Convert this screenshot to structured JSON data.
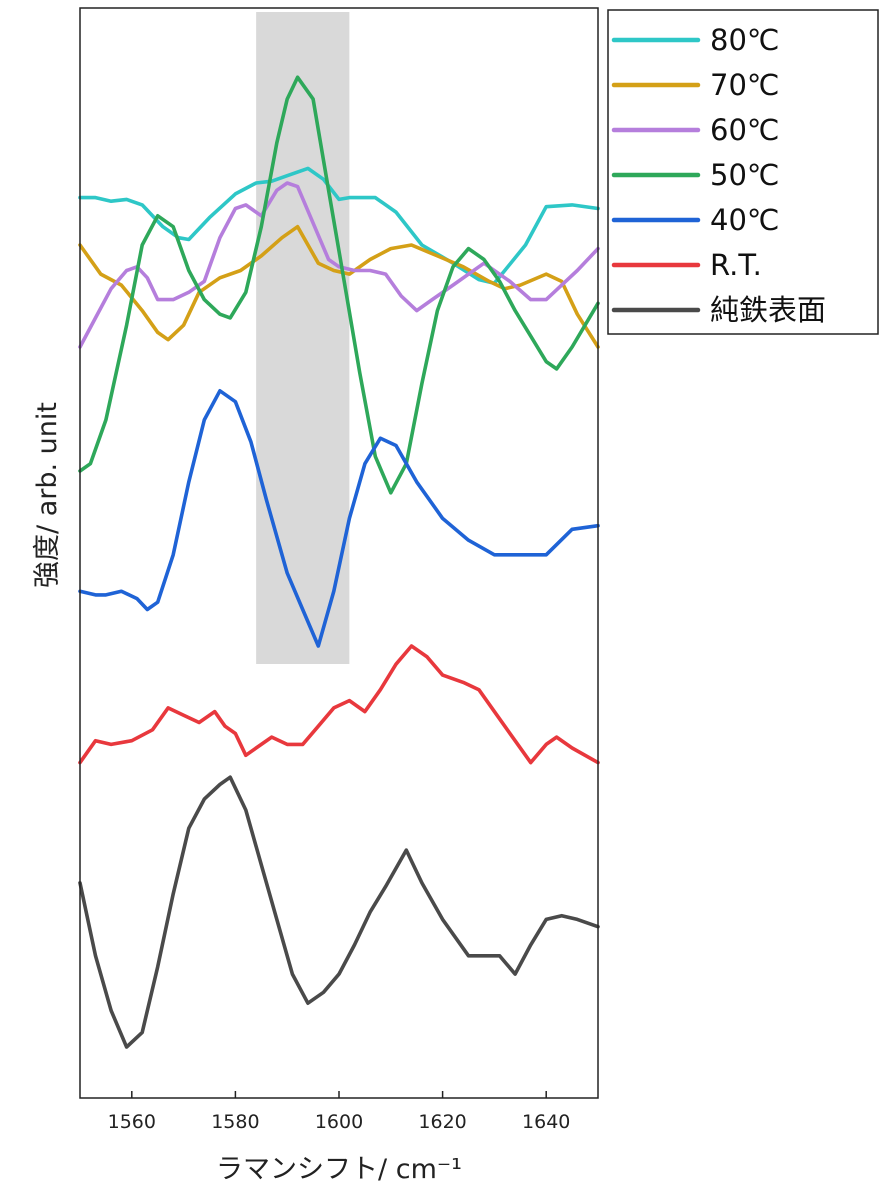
{
  "chart_data": {
    "type": "line",
    "xlabel": "ラマンシフト/ cm⁻¹",
    "ylabel": "強度/ arb. unit",
    "xlim": [
      1550,
      1650
    ],
    "xticks": [
      1560,
      1580,
      1600,
      1620,
      1640
    ],
    "y_axis_tick_labels": false,
    "highlight_band": {
      "x_from": 1584,
      "x_to": 1602,
      "color": "#d9d9d9"
    },
    "legend": {
      "position": "outside-top-right"
    },
    "series": [
      {
        "name": "80℃",
        "color": "#2ec7c7",
        "x": [
          1550,
          1553,
          1556,
          1559,
          1562,
          1566,
          1569,
          1571,
          1575,
          1580,
          1584,
          1587,
          1590,
          1594,
          1597,
          1600,
          1602,
          1607,
          1611,
          1616,
          1622,
          1627,
          1630,
          1632,
          1636,
          1640,
          1645,
          1650
        ],
        "y": [
          2.3,
          2.3,
          2.2,
          2.25,
          2.1,
          1.5,
          1.2,
          1.15,
          1.75,
          2.4,
          2.7,
          2.75,
          2.9,
          3.1,
          2.8,
          2.25,
          2.3,
          2.3,
          1.9,
          1.0,
          0.5,
          0.05,
          -0.05,
          0.3,
          1.0,
          2.05,
          2.1,
          2.0
        ]
      },
      {
        "name": "70℃",
        "color": "#d4a017",
        "x": [
          1550,
          1554,
          1558,
          1562,
          1565,
          1567,
          1570,
          1573,
          1577,
          1581,
          1585,
          1589,
          1592,
          1596,
          1599,
          1602,
          1606,
          1610,
          1614,
          1619,
          1624,
          1629,
          1632,
          1635,
          1640,
          1643,
          1646,
          1650
        ],
        "y": [
          1.0,
          0.2,
          -0.1,
          -0.8,
          -1.4,
          -1.6,
          -1.2,
          -0.3,
          0.1,
          0.3,
          0.7,
          1.2,
          1.5,
          0.5,
          0.3,
          0.2,
          0.6,
          0.9,
          1.0,
          0.7,
          0.4,
          0.0,
          -0.2,
          -0.1,
          0.2,
          0.0,
          -0.9,
          -1.8
        ]
      },
      {
        "name": "60℃",
        "color": "#b57edc",
        "x": [
          1550,
          1553,
          1556,
          1559,
          1561,
          1563,
          1565,
          1568,
          1571,
          1574,
          1577,
          1580,
          1582,
          1585,
          1588,
          1590,
          1592,
          1595,
          1598,
          1600,
          1603,
          1606,
          1609,
          1612,
          1615,
          1618,
          1622,
          1628,
          1633,
          1637,
          1640,
          1643,
          1646,
          1650
        ],
        "y": [
          -1.8,
          -1.0,
          -0.2,
          0.3,
          0.4,
          0.1,
          -0.5,
          -0.5,
          -0.3,
          0.0,
          1.2,
          2.0,
          2.1,
          1.8,
          2.5,
          2.7,
          2.6,
          1.6,
          0.6,
          0.4,
          0.3,
          0.3,
          0.2,
          -0.4,
          -0.8,
          -0.5,
          -0.1,
          0.5,
          0.0,
          -0.5,
          -0.5,
          -0.1,
          0.3,
          0.9
        ]
      },
      {
        "name": "50℃",
        "color": "#2ea85a",
        "x": [
          1550,
          1552,
          1555,
          1559,
          1562,
          1565,
          1568,
          1571,
          1574,
          1577,
          1579,
          1582,
          1585,
          1588,
          1590,
          1592,
          1595,
          1598,
          1601,
          1604,
          1607,
          1610,
          1613,
          1616,
          1619,
          1622,
          1625,
          1628,
          1631,
          1634,
          1637,
          1640,
          1642,
          1645,
          1650
        ],
        "y": [
          -5.2,
          -5.0,
          -3.8,
          -1.2,
          1.0,
          1.8,
          1.5,
          0.3,
          -0.5,
          -0.9,
          -1.0,
          -0.3,
          1.5,
          3.8,
          5.0,
          5.6,
          5.0,
          2.5,
          0.0,
          -2.5,
          -4.8,
          -5.8,
          -5.0,
          -2.8,
          -0.8,
          0.4,
          0.9,
          0.6,
          0.0,
          -0.8,
          -1.5,
          -2.2,
          -2.4,
          -1.8,
          -0.6
        ]
      },
      {
        "name": "40℃",
        "color": "#1f63d6",
        "x": [
          1550,
          1553,
          1555,
          1558,
          1561,
          1563,
          1565,
          1568,
          1571,
          1574,
          1577,
          1580,
          1583,
          1586,
          1590,
          1593,
          1596,
          1599,
          1602,
          1605,
          1608,
          1611,
          1615,
          1620,
          1625,
          1630,
          1635,
          1640,
          1645,
          1650
        ],
        "y": [
          -8.5,
          -8.6,
          -8.6,
          -8.5,
          -8.7,
          -9.0,
          -8.8,
          -7.5,
          -5.5,
          -3.8,
          -3.0,
          -3.3,
          -4.4,
          -6.0,
          -8.0,
          -9.0,
          -10.0,
          -8.5,
          -6.5,
          -5.0,
          -4.3,
          -4.5,
          -5.5,
          -6.5,
          -7.1,
          -7.5,
          -7.5,
          -7.5,
          -6.8,
          -6.7
        ]
      },
      {
        "name": "R.T.",
        "color": "#e8383d",
        "x": [
          1550,
          1553,
          1556,
          1560,
          1564,
          1567,
          1570,
          1573,
          1576,
          1578,
          1580,
          1582,
          1584,
          1587,
          1590,
          1593,
          1596,
          1599,
          1602,
          1605,
          1608,
          1611,
          1614,
          1617,
          1620,
          1624,
          1627,
          1630,
          1634,
          1637,
          1640,
          1642,
          1645,
          1650
        ],
        "y": [
          -13.2,
          -12.6,
          -12.7,
          -12.6,
          -12.3,
          -11.7,
          -11.9,
          -12.1,
          -11.8,
          -12.2,
          -12.4,
          -13.0,
          -12.8,
          -12.5,
          -12.7,
          -12.7,
          -12.2,
          -11.7,
          -11.5,
          -11.8,
          -11.2,
          -10.5,
          -10.0,
          -10.3,
          -10.8,
          -11.0,
          -11.2,
          -11.8,
          -12.6,
          -13.2,
          -12.7,
          -12.5,
          -12.8,
          -13.2
        ]
      },
      {
        "name": "純鉄表面",
        "color": "#4a4a4a",
        "x": [
          1550,
          1553,
          1556,
          1559,
          1562,
          1565,
          1568,
          1571,
          1574,
          1577,
          1579,
          1582,
          1585,
          1588,
          1591,
          1594,
          1597,
          1600,
          1603,
          1606,
          1609,
          1613,
          1616,
          1620,
          1625,
          1628,
          1631,
          1634,
          1637,
          1640,
          1643,
          1646,
          1650
        ],
        "y": [
          -16.5,
          -18.5,
          -20.0,
          -21.0,
          -20.6,
          -18.8,
          -16.8,
          -15.0,
          -14.2,
          -13.8,
          -13.6,
          -14.5,
          -16.0,
          -17.5,
          -19.0,
          -19.8,
          -19.5,
          -19.0,
          -18.2,
          -17.3,
          -16.6,
          -15.6,
          -16.5,
          -17.5,
          -18.5,
          -18.5,
          -18.5,
          -19.0,
          -18.2,
          -17.5,
          -17.4,
          -17.5,
          -17.7
        ]
      }
    ]
  }
}
